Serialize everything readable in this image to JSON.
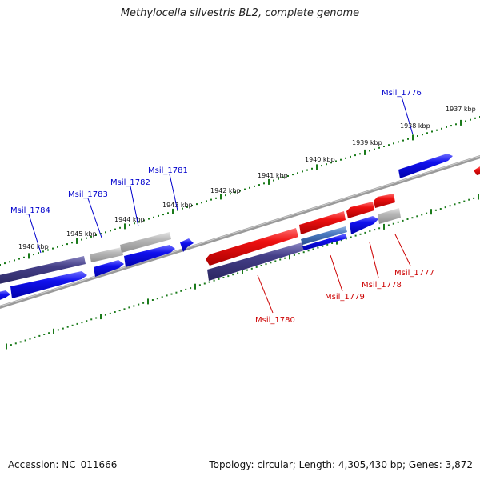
{
  "title": "Methylocella silvestris BL2, complete genome",
  "footer": {
    "accession": "Accession: NC_011666",
    "summary": "Topology: circular; Length: 4,305,430 bp; Genes: 3,872"
  },
  "colors": {
    "backbone": "#888888",
    "scale_ticks": "#1a7a1a",
    "forward_label": "#0000cc",
    "reverse_label": "#cc0000",
    "blue_gene": "#1111ee",
    "red_gene": "#ee1111",
    "purple_gene": "#443f88",
    "gray_gene": "#b9b9b9"
  },
  "scale_labels": [
    "1937 kbp",
    "1938 kbp",
    "1939 kbp",
    "1940 kbp",
    "1941 kbp",
    "1942 kbp",
    "1943 kbp",
    "1944 kbp",
    "1945 kbp",
    "1946 kbp"
  ],
  "forward_gene_labels": [
    "Msil_1776",
    "Msil_1781",
    "Msil_1782",
    "Msil_1783",
    "Msil_1784"
  ],
  "reverse_gene_labels": [
    "Msil_1777",
    "Msil_1778",
    "Msil_1779",
    "Msil_1780"
  ]
}
